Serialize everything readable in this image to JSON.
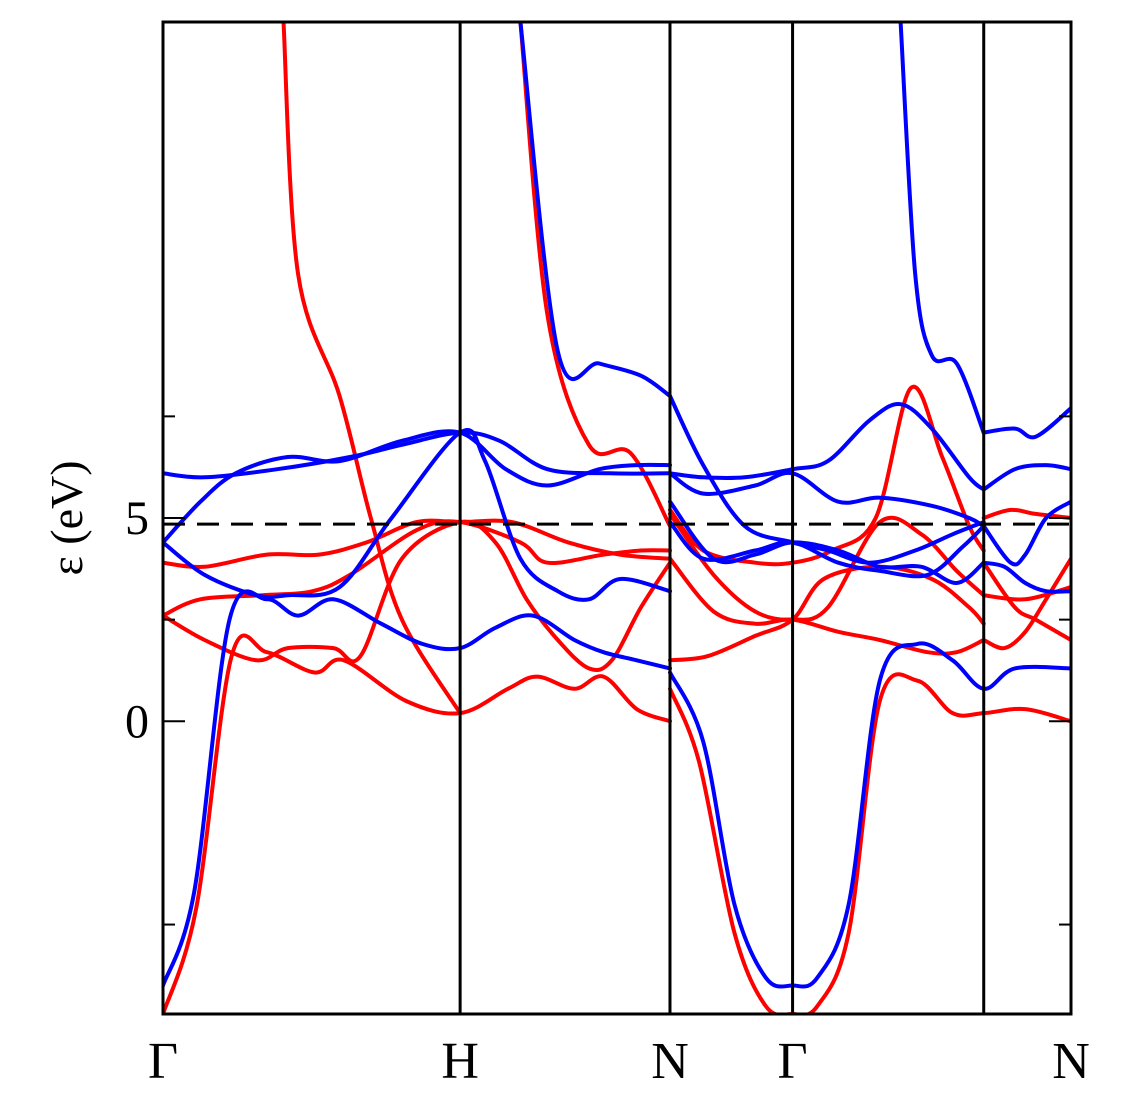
{
  "chart_data": {
    "type": "line",
    "title": "",
    "xlabel": "",
    "ylabel": "ε (eV)",
    "ylim": [
      -7.2,
      17.2
    ],
    "xlim": [
      0,
      4.37
    ],
    "grid": false,
    "legend": "none",
    "y_major_ticks": [
      0,
      5
    ],
    "y_minor_ticks": [
      -5,
      2.5,
      7.5
    ],
    "high_symmetry_points": [
      {
        "label": "Γ",
        "x": 0
      },
      {
        "label": "H",
        "x": 1.43
      },
      {
        "label": "N",
        "x": 2.44
      },
      {
        "label": "Γ",
        "x": 3.03
      },
      {
        "label": "",
        "x": 3.95
      },
      {
        "label": "N",
        "x": 4.37
      }
    ],
    "x_tick_labels": [
      "Γ",
      "H",
      "N",
      "Γ",
      "N"
    ],
    "reference_line": {
      "y": 4.85,
      "style": "dashed",
      "color": "#000000"
    },
    "colors": {
      "series1": "#ff0000",
      "series2": "#0000ff"
    },
    "series": [
      {
        "color": "#ff0000",
        "points": [
          [
            0,
            -7.2
          ],
          [
            0.16,
            -4.6
          ],
          [
            0.33,
            1.6
          ],
          [
            0.5,
            1.7
          ],
          [
            0.73,
            1.2
          ],
          [
            0.87,
            1.5
          ],
          [
            1.17,
            0.5
          ],
          [
            1.43,
            0.2
          ],
          [
            1.66,
            0.8
          ],
          [
            1.8,
            1.1
          ],
          [
            1.98,
            0.8
          ],
          [
            2.12,
            1.1
          ],
          [
            2.28,
            0.3
          ],
          [
            2.44,
            0
          ]
        ]
      },
      {
        "color": "#ff0000",
        "points": [
          [
            0,
            2.6
          ],
          [
            0.2,
            2.0
          ],
          [
            0.45,
            1.5
          ],
          [
            0.6,
            1.8
          ],
          [
            0.82,
            1.8
          ],
          [
            0.95,
            1.6
          ],
          [
            1.15,
            4.0
          ],
          [
            1.43,
            4.9
          ],
          [
            1.6,
            4.4
          ],
          [
            1.75,
            3.0
          ],
          [
            1.9,
            2.0
          ],
          [
            2.05,
            1.3
          ],
          [
            2.16,
            1.5
          ],
          [
            2.3,
            2.8
          ],
          [
            2.44,
            3.9
          ]
        ]
      },
      {
        "color": "#ff0000",
        "points": [
          [
            0,
            2.6
          ],
          [
            0.18,
            3.0
          ],
          [
            0.48,
            3.1
          ],
          [
            0.72,
            3.2
          ],
          [
            0.9,
            3.6
          ],
          [
            1.22,
            4.7
          ],
          [
            1.43,
            4.9
          ],
          [
            1.72,
            4.4
          ],
          [
            1.85,
            3.9
          ],
          [
            2.12,
            4.1
          ],
          [
            2.3,
            4.2
          ],
          [
            2.44,
            4.2
          ]
        ]
      },
      {
        "color": "#ff0000",
        "points": [
          [
            0,
            3.9
          ],
          [
            0.2,
            3.8
          ],
          [
            0.5,
            4.1
          ],
          [
            0.75,
            4.1
          ],
          [
            0.98,
            4.4
          ],
          [
            1.22,
            4.9
          ],
          [
            1.43,
            4.9
          ],
          [
            1.68,
            4.9
          ],
          [
            1.95,
            4.4
          ],
          [
            2.2,
            4.1
          ],
          [
            2.44,
            4.0
          ]
        ]
      },
      {
        "color": "#ff0000",
        "points": [
          [
            0.58,
            17.2
          ],
          [
            0.65,
            11
          ],
          [
            0.85,
            8
          ],
          [
            1.0,
            5
          ],
          [
            1.15,
            2.5
          ],
          [
            1.43,
            0.2
          ]
        ]
      },
      {
        "color": "#ff0000",
        "points": [
          [
            1.72,
            17.2
          ],
          [
            1.85,
            10
          ],
          [
            2.05,
            6.8
          ],
          [
            2.25,
            6.6
          ],
          [
            2.44,
            4.8
          ]
        ]
      },
      {
        "color": "#ff0000",
        "points": [
          [
            2.44,
            4.0
          ],
          [
            2.65,
            2.7
          ],
          [
            2.85,
            2.4
          ],
          [
            3.03,
            2.5
          ],
          [
            3.25,
            2.2
          ],
          [
            3.45,
            2.0
          ],
          [
            3.68,
            1.7
          ],
          [
            3.82,
            1.7
          ],
          [
            3.95,
            2.0
          ]
        ]
      },
      {
        "color": "#ff0000",
        "points": [
          [
            2.44,
            0.8
          ],
          [
            2.58,
            -1.0
          ],
          [
            2.75,
            -5.2
          ],
          [
            2.9,
            -7.0
          ],
          [
            3.03,
            -7.2
          ],
          [
            3.15,
            -7.0
          ],
          [
            3.3,
            -5.2
          ],
          [
            3.45,
            0.5
          ],
          [
            3.63,
            1.0
          ],
          [
            3.8,
            0.2
          ],
          [
            3.95,
            0.2
          ],
          [
            4.15,
            0.3
          ],
          [
            4.37,
            0
          ]
        ]
      },
      {
        "color": "#ff0000",
        "points": [
          [
            2.44,
            5.2
          ],
          [
            2.6,
            4.2
          ],
          [
            2.85,
            3.9
          ],
          [
            3.03,
            3.9
          ],
          [
            3.22,
            4.2
          ],
          [
            3.43,
            5.0
          ],
          [
            3.6,
            8.2
          ],
          [
            3.75,
            6.5
          ],
          [
            3.88,
            4.8
          ],
          [
            3.95,
            4.2
          ]
        ]
      },
      {
        "color": "#ff0000",
        "points": [
          [
            2.44,
            1.5
          ],
          [
            2.62,
            1.6
          ],
          [
            2.85,
            2.1
          ],
          [
            3.03,
            2.5
          ],
          [
            3.18,
            3.5
          ],
          [
            3.45,
            3.8
          ],
          [
            3.7,
            3.5
          ],
          [
            3.88,
            2.8
          ],
          [
            3.95,
            2.4
          ]
        ]
      },
      {
        "color": "#ff0000",
        "points": [
          [
            2.44,
            5.1
          ],
          [
            2.65,
            3.6
          ],
          [
            2.85,
            2.7
          ],
          [
            3.03,
            2.5
          ],
          [
            3.2,
            2.8
          ],
          [
            3.45,
            4.9
          ],
          [
            3.65,
            4.6
          ],
          [
            3.82,
            3.7
          ],
          [
            3.95,
            3.1
          ]
        ]
      },
      {
        "color": "#ff0000",
        "points": [
          [
            3.95,
            5.0
          ],
          [
            4.08,
            5.2
          ],
          [
            4.2,
            5.1
          ],
          [
            4.37,
            5.0
          ]
        ]
      },
      {
        "color": "#ff0000",
        "points": [
          [
            3.95,
            3.9
          ],
          [
            4.1,
            2.8
          ],
          [
            4.2,
            2.5
          ],
          [
            4.37,
            2.0
          ]
        ]
      },
      {
        "color": "#ff0000",
        "points": [
          [
            3.95,
            2.0
          ],
          [
            4.05,
            1.8
          ],
          [
            4.15,
            2.2
          ],
          [
            4.25,
            3.0
          ],
          [
            4.37,
            4.0
          ]
        ]
      },
      {
        "color": "#ff0000",
        "points": [
          [
            3.95,
            3.1
          ],
          [
            4.15,
            3.0
          ],
          [
            4.37,
            3.3
          ]
        ]
      },
      {
        "color": "#0000ff",
        "points": [
          [
            0,
            -6.5
          ],
          [
            0.15,
            -4.2
          ],
          [
            0.32,
            2.5
          ],
          [
            0.5,
            3.0
          ],
          [
            0.65,
            2.6
          ],
          [
            0.82,
            3.0
          ],
          [
            1.05,
            2.4
          ],
          [
            1.25,
            1.9
          ],
          [
            1.43,
            1.8
          ],
          [
            1.6,
            2.3
          ],
          [
            1.78,
            2.6
          ],
          [
            1.98,
            2.0
          ],
          [
            2.12,
            1.7
          ],
          [
            2.28,
            1.5
          ],
          [
            2.44,
            1.3
          ]
        ]
      },
      {
        "color": "#0000ff",
        "points": [
          [
            0,
            4.4
          ],
          [
            0.2,
            3.6
          ],
          [
            0.45,
            3.1
          ],
          [
            0.6,
            3.1
          ],
          [
            0.85,
            3.3
          ],
          [
            1.1,
            5.0
          ],
          [
            1.43,
            7.1
          ],
          [
            1.55,
            6.4
          ],
          [
            1.72,
            4.0
          ],
          [
            1.9,
            3.2
          ],
          [
            2.05,
            3.0
          ],
          [
            2.2,
            3.5
          ],
          [
            2.44,
            3.2
          ]
        ]
      },
      {
        "color": "#0000ff",
        "points": [
          [
            0,
            4.4
          ],
          [
            0.18,
            5.4
          ],
          [
            0.35,
            6.1
          ],
          [
            0.6,
            6.5
          ],
          [
            0.85,
            6.4
          ],
          [
            1.15,
            6.9
          ],
          [
            1.43,
            7.1
          ],
          [
            1.65,
            6.2
          ],
          [
            1.85,
            5.8
          ],
          [
            2.1,
            6.2
          ],
          [
            2.28,
            6.3
          ],
          [
            2.44,
            6.3
          ]
        ]
      },
      {
        "color": "#0000ff",
        "points": [
          [
            0,
            6.1
          ],
          [
            0.2,
            6.0
          ],
          [
            0.55,
            6.2
          ],
          [
            0.9,
            6.5
          ],
          [
            1.15,
            6.8
          ],
          [
            1.43,
            7.1
          ],
          [
            1.62,
            6.9
          ],
          [
            1.85,
            6.2
          ],
          [
            2.15,
            6.1
          ],
          [
            2.44,
            6.1
          ]
        ]
      },
      {
        "color": "#0000ff",
        "points": [
          [
            1.72,
            17.2
          ],
          [
            1.9,
            9.1
          ],
          [
            2.1,
            8.8
          ],
          [
            2.3,
            8.5
          ],
          [
            2.44,
            8.0
          ]
        ]
      },
      {
        "color": "#0000ff",
        "points": [
          [
            2.44,
            8.0
          ],
          [
            2.6,
            6.3
          ],
          [
            2.8,
            4.8
          ],
          [
            3.03,
            4.4
          ],
          [
            3.2,
            4.2
          ],
          [
            3.4,
            3.9
          ],
          [
            3.62,
            4.2
          ],
          [
            3.8,
            4.6
          ],
          [
            3.95,
            4.9
          ]
        ]
      },
      {
        "color": "#0000ff",
        "points": [
          [
            2.44,
            6.1
          ],
          [
            2.6,
            6.0
          ],
          [
            2.8,
            6.0
          ],
          [
            3.03,
            6.2
          ],
          [
            3.2,
            6.4
          ],
          [
            3.4,
            7.4
          ],
          [
            3.55,
            7.8
          ],
          [
            3.7,
            7.2
          ],
          [
            3.88,
            6.0
          ],
          [
            3.95,
            5.7
          ]
        ]
      },
      {
        "color": "#0000ff",
        "points": [
          [
            2.44,
            6.1
          ],
          [
            2.6,
            5.6
          ],
          [
            2.85,
            5.8
          ],
          [
            3.03,
            6.1
          ],
          [
            3.25,
            5.4
          ],
          [
            3.45,
            5.5
          ],
          [
            3.7,
            5.3
          ],
          [
            3.88,
            5.0
          ],
          [
            3.95,
            4.8
          ]
        ]
      },
      {
        "color": "#0000ff",
        "points": [
          [
            2.44,
            1.2
          ],
          [
            2.6,
            -0.5
          ],
          [
            2.75,
            -4.5
          ],
          [
            2.9,
            -6.3
          ],
          [
            3.03,
            -6.5
          ],
          [
            3.15,
            -6.3
          ],
          [
            3.3,
            -4.5
          ],
          [
            3.45,
            1.0
          ],
          [
            3.63,
            1.9
          ],
          [
            3.8,
            1.5
          ],
          [
            3.95,
            0.8
          ],
          [
            4.1,
            1.3
          ],
          [
            4.37,
            1.3
          ]
        ]
      },
      {
        "color": "#0000ff",
        "points": [
          [
            2.44,
            5.4
          ],
          [
            2.65,
            4.0
          ],
          [
            2.85,
            4.1
          ],
          [
            3.03,
            4.4
          ],
          [
            3.25,
            4.2
          ],
          [
            3.45,
            3.8
          ],
          [
            3.65,
            3.8
          ],
          [
            3.82,
            3.4
          ],
          [
            3.95,
            3.9
          ]
        ]
      },
      {
        "color": "#0000ff",
        "points": [
          [
            2.44,
            4.9
          ],
          [
            2.6,
            4.0
          ],
          [
            2.85,
            4.2
          ],
          [
            3.03,
            4.4
          ],
          [
            3.25,
            3.9
          ],
          [
            3.45,
            3.7
          ],
          [
            3.68,
            3.6
          ],
          [
            3.85,
            4.3
          ],
          [
            3.95,
            4.8
          ]
        ]
      },
      {
        "color": "#0000ff",
        "points": [
          [
            3.95,
            7.1
          ],
          [
            4.1,
            7.2
          ],
          [
            4.2,
            7.0
          ],
          [
            4.37,
            7.7
          ]
        ]
      },
      {
        "color": "#0000ff",
        "points": [
          [
            3.95,
            5.7
          ],
          [
            4.1,
            6.2
          ],
          [
            4.25,
            6.3
          ],
          [
            4.37,
            6.2
          ]
        ]
      },
      {
        "color": "#0000ff",
        "points": [
          [
            3.95,
            4.8
          ],
          [
            4.08,
            3.9
          ],
          [
            4.15,
            4.1
          ],
          [
            4.25,
            5.0
          ],
          [
            4.37,
            5.4
          ]
        ]
      },
      {
        "color": "#0000ff",
        "points": [
          [
            3.95,
            3.9
          ],
          [
            4.05,
            3.8
          ],
          [
            4.15,
            3.4
          ],
          [
            4.25,
            3.2
          ],
          [
            4.37,
            3.2
          ]
        ]
      },
      {
        "color": "#0000ff",
        "points": [
          [
            3.55,
            17.2
          ],
          [
            3.62,
            11
          ],
          [
            3.7,
            9
          ],
          [
            3.82,
            8.8
          ],
          [
            3.95,
            7.1
          ]
        ]
      }
    ]
  }
}
